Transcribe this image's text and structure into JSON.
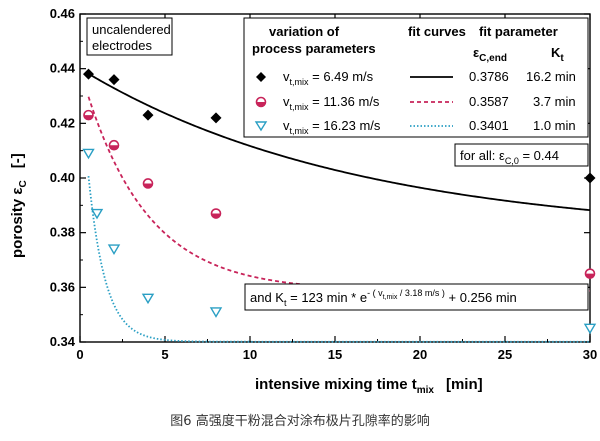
{
  "caption": "图6 高强度干粉混合对涂布极片孔隙率的影响",
  "chart_data": {
    "type": "scatter",
    "xlabel": "intensive mixing time t",
    "xlabel_sub": "mix",
    "xlabel_unit": "[min]",
    "ylabel": "porosity ε",
    "ylabel_sub": "C",
    "ylabel_unit": "[-]",
    "xlim": [
      0,
      30
    ],
    "ylim": [
      0.34,
      0.46
    ],
    "xticks": [
      0,
      5,
      10,
      15,
      20,
      25,
      30
    ],
    "yticks": [
      0.34,
      0.36,
      0.38,
      0.4,
      0.42,
      0.44,
      0.46
    ],
    "ytick_labels": [
      "0.34",
      "0.36",
      "0.38",
      "0.40",
      "0.42",
      "0.44",
      "0.46"
    ],
    "annotation_topleft": [
      "uncalendered",
      "electrodes"
    ],
    "legend": {
      "header_col1": [
        "variation of",
        "process parameters"
      ],
      "header_col2": "fit curves",
      "header_col3": "fit parameter",
      "header_eps": "ε",
      "header_eps_sub": "C,end",
      "header_k": "K",
      "header_k_sub": "t",
      "rows": [
        {
          "vprefix": "v",
          "vsub": "t,mix",
          "vtext": " =   6.49 m/s",
          "eps": "0.3786",
          "kt": "16.2 min"
        },
        {
          "vprefix": "v",
          "vsub": "t,mix",
          "vtext": " = 11.36 m/s",
          "eps": "0.3587",
          "kt": "3.7 min"
        },
        {
          "vprefix": "v",
          "vsub": "t,mix",
          "vtext": " = 16.23 m/s",
          "eps": "0.3401",
          "kt": "1.0 min"
        }
      ]
    },
    "note_forall": {
      "text": "for all:  ε",
      "sub": "C,0",
      "tail": " = 0.44"
    },
    "note_formula": {
      "pre": "and K",
      "pre_sub": "t",
      "mid": " = 123 min * e",
      "exp": "- ( v",
      "exp_sub": "t,mix",
      "exp_tail": " / 3.18 m/s )",
      "post": " + 0.256 min"
    },
    "series": [
      {
        "name": "v_t,mix = 6.49 m/s",
        "marker": "diamond",
        "color": "#000000",
        "x": [
          0.5,
          2,
          4,
          8,
          30
        ],
        "y": [
          0.438,
          0.436,
          0.423,
          0.422,
          0.4
        ],
        "fit": {
          "c0": 0.44,
          "cend": 0.3786,
          "kt": 16.2,
          "style": "solid"
        }
      },
      {
        "name": "v_t,mix = 11.36 m/s",
        "marker": "circle",
        "color": "#c8245a",
        "x": [
          0.5,
          2,
          4,
          8,
          30
        ],
        "y": [
          0.423,
          0.412,
          0.398,
          0.387,
          0.365
        ],
        "fit": {
          "c0": 0.44,
          "cend": 0.3587,
          "kt": 3.7,
          "style": "dashed"
        }
      },
      {
        "name": "v_t,mix = 16.23 m/s",
        "marker": "triangle",
        "color": "#2a9fc4",
        "x": [
          0.5,
          1,
          2,
          4,
          8,
          30
        ],
        "y": [
          0.409,
          0.387,
          0.374,
          0.356,
          0.351,
          0.345
        ],
        "fit": {
          "c0": 0.44,
          "cend": 0.3401,
          "kt": 1.0,
          "style": "dotted"
        }
      }
    ]
  }
}
